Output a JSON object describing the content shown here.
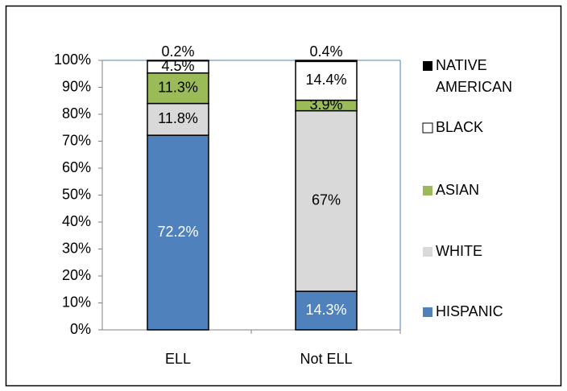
{
  "chart_data": {
    "type": "stacked_bar",
    "categories": [
      "ELL",
      "Not ELL"
    ],
    "series": [
      {
        "name": "HISPANIC",
        "color": "#4f81bd",
        "values": [
          72.2,
          14.3
        ],
        "value_labels": [
          "72.2%",
          "14.3%"
        ]
      },
      {
        "name": "WHITE",
        "color": "#d9d9d9",
        "values": [
          11.8,
          67
        ],
        "value_labels": [
          "11.8%",
          "67%"
        ]
      },
      {
        "name": "ASIAN",
        "color": "#9bbb59",
        "values": [
          11.3,
          3.9
        ],
        "value_labels": [
          "11.3%",
          "3.9%"
        ]
      },
      {
        "name": "BLACK",
        "color": "#ffffff",
        "values": [
          4.5,
          14.4
        ],
        "value_labels": [
          "4.5%",
          "14.4%"
        ]
      },
      {
        "name": "NATIVE AMERICAN",
        "color": "#000000",
        "values": [
          0.2,
          0.4
        ],
        "value_labels": [
          "0.2%",
          "0.4%"
        ]
      }
    ],
    "ylim": [
      0,
      100
    ],
    "yticks": [
      {
        "value": 0,
        "label": "0%"
      },
      {
        "value": 10,
        "label": "10%"
      },
      {
        "value": 20,
        "label": "20%"
      },
      {
        "value": 30,
        "label": "30%"
      },
      {
        "value": 40,
        "label": "40%"
      },
      {
        "value": 50,
        "label": "50%"
      },
      {
        "value": 60,
        "label": "60%"
      },
      {
        "value": 70,
        "label": "70%"
      },
      {
        "value": 80,
        "label": "80%"
      },
      {
        "value": 90,
        "label": "90%"
      },
      {
        "value": 100,
        "label": "100%"
      }
    ],
    "legend": "right"
  }
}
